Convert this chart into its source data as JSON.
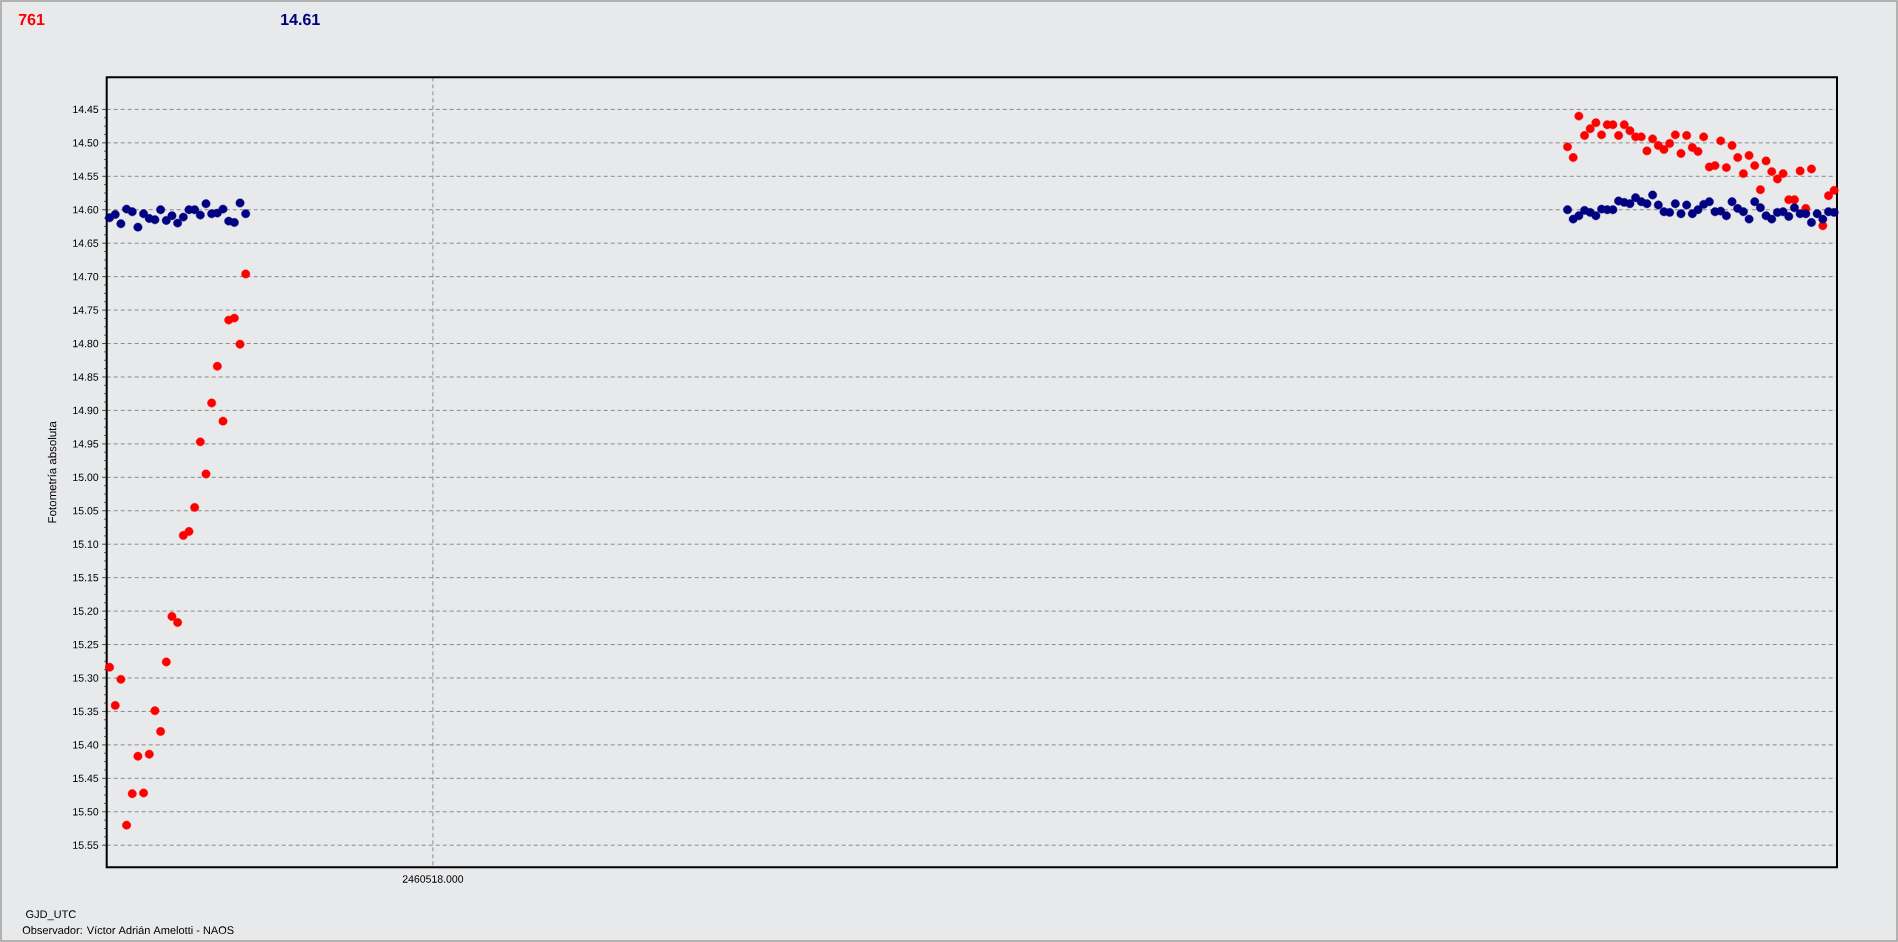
{
  "chart_data": {
    "type": "scatter",
    "xlabel": "GJD_UTC",
    "ylabel": "Fotometría absoluta",
    "annotations": [
      "Observador: Víctor Adrián Amelotti - NAOS"
    ],
    "categories": [
      null,
      null,
      null,
      null,
      null,
      null,
      null,
      null,
      null,
      null,
      null,
      null,
      null,
      null,
      null,
      null,
      null,
      null,
      null,
      null,
      null,
      null,
      null,
      null,
      null,
      null,
      null,
      null,
      null,
      null,
      null,
      null,
      null,
      null,
      null,
      null,
      null,
      null,
      null,
      null,
      null,
      null,
      null,
      null,
      null,
      null,
      null,
      null,
      null,
      null,
      null,
      null,
      null,
      null,
      null,
      null,
      null,
      "2460518.000",
      null,
      null,
      null,
      null,
      null,
      null,
      null,
      null,
      null,
      null,
      null,
      null,
      null,
      null,
      null,
      null,
      null,
      null,
      null,
      null,
      null,
      null,
      null,
      null,
      null,
      null,
      null,
      null,
      null,
      null,
      null,
      null,
      null,
      null,
      null,
      null,
      null,
      null,
      null,
      null,
      null,
      null,
      null,
      null,
      null,
      null,
      null,
      null,
      null,
      null,
      null,
      null,
      null,
      null,
      null,
      null,
      null,
      null,
      null,
      null,
      null,
      null,
      null,
      null,
      null,
      null,
      null,
      null,
      null,
      null,
      null,
      null,
      null,
      null,
      null,
      null,
      null,
      null,
      null,
      null,
      null,
      null,
      null,
      null,
      null,
      null,
      null,
      null,
      null,
      null,
      null,
      null,
      null,
      null,
      null,
      null,
      null,
      null,
      null,
      null,
      null,
      null,
      null,
      null,
      null,
      null,
      null,
      null,
      null,
      null,
      null,
      null,
      null,
      null,
      null,
      null,
      null,
      null,
      null,
      null,
      null,
      null,
      null,
      null,
      null,
      null,
      null,
      null,
      null,
      null,
      null,
      null,
      null,
      null,
      null,
      null,
      null,
      null,
      null,
      null,
      null,
      null,
      null,
      null,
      null,
      null,
      null,
      null,
      null,
      null,
      null,
      null,
      null,
      null,
      null,
      null,
      null,
      null,
      null,
      null,
      null,
      null,
      null,
      null,
      null,
      null,
      null,
      null,
      null,
      null,
      null,
      null,
      null,
      null,
      null,
      null,
      null,
      null,
      null,
      null,
      null,
      null,
      null,
      null,
      null,
      null,
      null,
      null,
      null,
      null,
      null,
      null,
      null,
      null,
      null,
      null,
      null,
      null,
      null,
      null,
      null,
      null,
      null,
      null,
      null,
      null,
      null,
      null,
      null,
      null,
      null,
      null,
      null,
      null,
      null,
      null,
      null,
      null,
      null,
      null,
      null,
      null,
      null,
      null,
      null,
      null,
      null,
      null,
      null,
      null,
      null,
      null,
      null,
      null,
      null,
      null,
      null,
      null,
      null,
      null,
      null,
      null,
      null,
      null,
      null,
      null,
      null
    ],
    "series": [
      {
        "name": "761",
        "color": "#ff0000",
        "values": [
          15.284,
          15.341,
          15.302,
          15.52,
          15.473,
          15.417,
          15.472,
          15.414,
          15.349,
          15.38,
          15.276,
          15.208,
          15.217,
          15.087,
          15.081,
          15.045,
          14.947,
          14.995,
          14.889,
          14.834,
          14.916,
          14.765,
          14.762,
          14.801,
          14.696,
          null,
          null,
          null,
          null,
          null,
          null,
          null,
          null,
          null,
          null,
          null,
          null,
          null,
          null,
          null,
          null,
          null,
          null,
          null,
          null,
          null,
          null,
          null,
          null,
          null,
          null,
          null,
          null,
          null,
          null,
          null,
          null,
          null,
          null,
          null,
          null,
          null,
          null,
          null,
          null,
          null,
          null,
          null,
          null,
          null,
          null,
          null,
          null,
          null,
          null,
          null,
          null,
          null,
          null,
          null,
          null,
          null,
          null,
          null,
          null,
          null,
          null,
          null,
          null,
          null,
          null,
          null,
          null,
          null,
          null,
          null,
          null,
          null,
          null,
          null,
          null,
          null,
          null,
          null,
          null,
          null,
          null,
          null,
          null,
          null,
          null,
          null,
          null,
          null,
          null,
          null,
          null,
          null,
          null,
          null,
          null,
          null,
          null,
          null,
          null,
          null,
          null,
          null,
          null,
          null,
          null,
          null,
          null,
          null,
          null,
          null,
          null,
          null,
          null,
          null,
          null,
          null,
          null,
          null,
          null,
          null,
          null,
          null,
          null,
          null,
          null,
          null,
          null,
          null,
          null,
          null,
          null,
          null,
          null,
          null,
          null,
          null,
          null,
          null,
          null,
          null,
          null,
          null,
          null,
          null,
          null,
          null,
          null,
          null,
          null,
          null,
          null,
          null,
          null,
          null,
          null,
          null,
          null,
          null,
          null,
          null,
          null,
          null,
          null,
          null,
          null,
          null,
          null,
          null,
          null,
          null,
          null,
          null,
          null,
          null,
          null,
          null,
          null,
          null,
          null,
          null,
          null,
          null,
          null,
          null,
          null,
          null,
          null,
          null,
          null,
          null,
          null,
          null,
          null,
          null,
          null,
          null,
          null,
          null,
          null,
          null,
          null,
          null,
          null,
          null,
          null,
          null,
          null,
          null,
          null,
          null,
          null,
          null,
          null,
          null,
          null,
          null,
          null,
          null,
          null,
          null,
          null,
          null,
          null,
          null,
          null,
          null,
          null,
          null,
          null,
          null,
          null,
          14.506,
          14.522,
          14.46,
          14.489,
          14.479,
          14.47,
          14.488,
          14.473,
          14.473,
          14.489,
          14.473,
          14.482,
          14.491,
          14.491,
          14.512,
          14.494,
          14.504,
          14.51,
          14.501,
          14.488,
          14.516,
          14.489,
          14.507,
          14.513,
          14.491,
          14.536,
          14.534,
          14.497,
          14.537,
          14.504,
          14.522,
          14.546,
          14.519,
          14.534,
          14.57,
          14.527,
          14.543,
          14.554,
          14.546,
          14.585,
          14.585,
          14.542,
          14.598,
          14.539,
          null,
          14.624,
          14.579,
          14.571
        ]
      },
      {
        "name": "14.61",
        "color": "#000080",
        "values": [
          14.612,
          14.607,
          14.621,
          14.599,
          14.603,
          14.626,
          14.606,
          14.613,
          14.615,
          14.6,
          14.616,
          14.609,
          14.62,
          14.611,
          14.6,
          14.6,
          14.608,
          14.591,
          14.606,
          14.605,
          14.599,
          14.617,
          14.619,
          14.59,
          14.606,
          null,
          null,
          null,
          null,
          null,
          null,
          null,
          null,
          null,
          null,
          null,
          null,
          null,
          null,
          null,
          null,
          null,
          null,
          null,
          null,
          null,
          null,
          null,
          null,
          null,
          null,
          null,
          null,
          null,
          null,
          null,
          null,
          null,
          null,
          null,
          null,
          null,
          null,
          null,
          null,
          null,
          null,
          null,
          null,
          null,
          null,
          null,
          null,
          null,
          null,
          null,
          null,
          null,
          null,
          null,
          null,
          null,
          null,
          null,
          null,
          null,
          null,
          null,
          null,
          null,
          null,
          null,
          null,
          null,
          null,
          null,
          null,
          null,
          null,
          null,
          null,
          null,
          null,
          null,
          null,
          null,
          null,
          null,
          null,
          null,
          null,
          null,
          null,
          null,
          null,
          null,
          null,
          null,
          null,
          null,
          null,
          null,
          null,
          null,
          null,
          null,
          null,
          null,
          null,
          null,
          null,
          null,
          null,
          null,
          null,
          null,
          null,
          null,
          null,
          null,
          null,
          null,
          null,
          null,
          null,
          null,
          null,
          null,
          null,
          null,
          null,
          null,
          null,
          null,
          null,
          null,
          null,
          null,
          null,
          null,
          null,
          null,
          null,
          null,
          null,
          null,
          null,
          null,
          null,
          null,
          null,
          null,
          null,
          null,
          null,
          null,
          null,
          null,
          null,
          null,
          null,
          null,
          null,
          null,
          null,
          null,
          null,
          null,
          null,
          null,
          null,
          null,
          null,
          null,
          null,
          null,
          null,
          null,
          null,
          null,
          null,
          null,
          null,
          null,
          null,
          null,
          null,
          null,
          null,
          null,
          null,
          null,
          null,
          null,
          null,
          null,
          null,
          null,
          null,
          null,
          null,
          null,
          null,
          null,
          null,
          null,
          null,
          null,
          null,
          null,
          null,
          null,
          null,
          null,
          null,
          null,
          null,
          null,
          null,
          null,
          null,
          null,
          null,
          null,
          null,
          null,
          null,
          null,
          null,
          null,
          null,
          null,
          null,
          null,
          null,
          null,
          null,
          14.6,
          14.614,
          14.609,
          14.601,
          14.604,
          14.609,
          14.599,
          14.6,
          14.6,
          14.587,
          14.589,
          14.591,
          14.582,
          14.588,
          14.591,
          14.578,
          14.593,
          14.603,
          14.604,
          14.591,
          14.606,
          14.593,
          14.606,
          14.6,
          14.592,
          14.588,
          14.603,
          14.602,
          14.609,
          14.588,
          14.598,
          14.603,
          14.614,
          14.588,
          14.597,
          14.609,
          14.614,
          14.604,
          14.603,
          14.61,
          14.597,
          14.606,
          14.606,
          14.619,
          14.606,
          14.614,
          14.603,
          14.604
        ]
      }
    ],
    "ylim": [
      15.583,
      14.402
    ],
    "yticks": [
      {
        "value": 14.45,
        "label": "14.45"
      },
      {
        "value": 14.5,
        "label": "14.50"
      },
      {
        "value": 14.55,
        "label": "14.55"
      },
      {
        "value": 14.6,
        "label": "14.60"
      },
      {
        "value": 14.65,
        "label": "14.65"
      },
      {
        "value": 14.7,
        "label": "14.70"
      },
      {
        "value": 14.75,
        "label": "14.75"
      },
      {
        "value": 14.8,
        "label": "14.80"
      },
      {
        "value": 14.85,
        "label": "14.85"
      },
      {
        "value": 14.9,
        "label": "14.90"
      },
      {
        "value": 14.95,
        "label": "14.95"
      },
      {
        "value": 15.0,
        "label": "15.00"
      },
      {
        "value": 15.05,
        "label": "15.05"
      },
      {
        "value": 15.1,
        "label": "15.10"
      },
      {
        "value": 15.15,
        "label": "15.15"
      },
      {
        "value": 15.2,
        "label": "15.20"
      },
      {
        "value": 15.25,
        "label": "15.25"
      },
      {
        "value": 15.3,
        "label": "15.30"
      },
      {
        "value": 15.35,
        "label": "15.35"
      },
      {
        "value": 15.4,
        "label": "15.40"
      },
      {
        "value": 15.45,
        "label": "15.45"
      },
      {
        "value": 15.5,
        "label": "15.50"
      },
      {
        "value": 15.55,
        "label": "15.55"
      }
    ],
    "grid": true,
    "marker": "circle"
  }
}
